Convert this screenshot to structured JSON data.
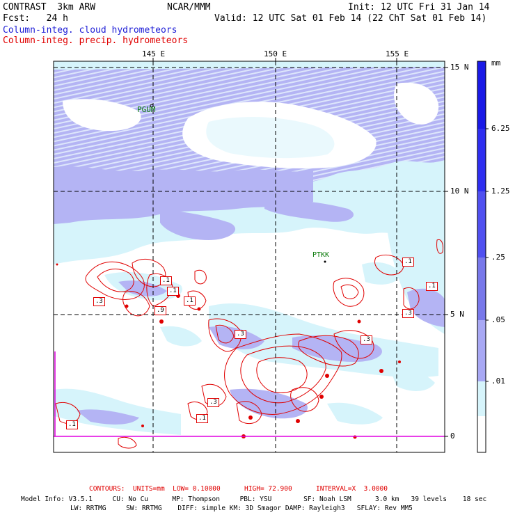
{
  "header": {
    "model": "CONTRAST  3km ARW",
    "org": "NCAR/MMM",
    "init": "Init: 12 UTC Fri 31 Jan 14",
    "fcst": "Fcst:   24 h",
    "valid": "Valid: 12 UTC Sat 01 Feb 14 (22 ChT Sat 01 Feb 14)",
    "field1": "Column-integ. cloud hydrometeors",
    "field2": "Column-integ. precip. hydrometeors"
  },
  "colors": {
    "field1": "#1d1dd6",
    "field2": "#e00000",
    "shade_light": "#d6f4fb",
    "shade_mid": "#b4b4f4",
    "shade_dark": "#8080e8",
    "contour": "#e00000"
  },
  "map": {
    "lon_labels": [
      "145 E",
      "150 E",
      "155 E"
    ],
    "lat_labels": [
      "15 N",
      "10 N",
      "5 N",
      "0"
    ],
    "stations": [
      "PGUM",
      "PTKK"
    ]
  },
  "contour_boxes": [
    ".1",
    ".3",
    ".1",
    ".9",
    ".3",
    ".3",
    ".1",
    ".1",
    ".3",
    ".1",
    ".3",
    ".1",
    ".1"
  ],
  "colorbar": {
    "unit": "mm",
    "labels": [
      "6.25",
      "1.25",
      ".25",
      ".05",
      ".01"
    ],
    "colors": [
      "#1a1ae6",
      "#2e2ef0",
      "#5050f0",
      "#7878ea",
      "#a8a8f4",
      "#d6f4fb",
      "#ffffff"
    ]
  },
  "footer": {
    "contours": "CONTOURS:  UNITS=mm  LOW= 0.10000      HIGH= 72.900      INTERVAL=X  3.0000",
    "model_info": "Model Info: V3.5.1     CU: No Cu      MP: Thompson     PBL: YSU        SF: Noah LSM      3.0 km   39 levels    18 sec",
    "physics": "LW: RRTMG     SW: RRTMG    DIFF: simple KM: 3D Smagor DAMP: Rayleigh3   SFLAY: Rev MM5"
  }
}
